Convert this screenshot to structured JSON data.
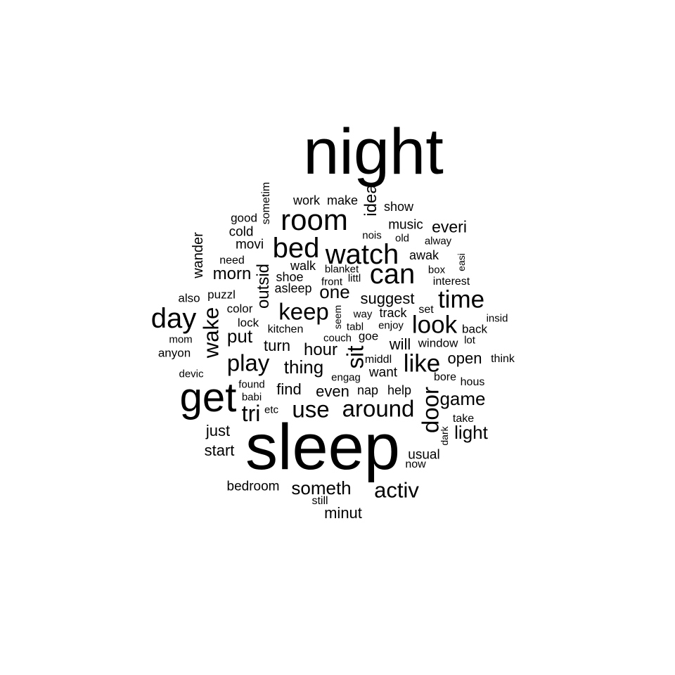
{
  "text_color": "#000000",
  "background": "#ffffff",
  "words": [
    {
      "text": "night",
      "weight": 1.0
    },
    {
      "text": "sleep",
      "weight": 1.0
    },
    {
      "text": "get",
      "weight": 0.7
    },
    {
      "text": "room",
      "weight": 0.55
    },
    {
      "text": "watch",
      "weight": 0.55
    },
    {
      "text": "can",
      "weight": 0.55
    },
    {
      "text": "bed",
      "weight": 0.55
    },
    {
      "text": "day",
      "weight": 0.55
    },
    {
      "text": "time",
      "weight": 0.45
    },
    {
      "text": "look",
      "weight": 0.45
    },
    {
      "text": "like",
      "weight": 0.45
    },
    {
      "text": "keep",
      "weight": 0.45
    },
    {
      "text": "play",
      "weight": 0.45
    },
    {
      "text": "around",
      "weight": 0.45
    },
    {
      "text": "use",
      "weight": 0.45
    },
    {
      "text": "activ",
      "weight": 0.45
    },
    {
      "text": "wake",
      "weight": 0.45
    },
    {
      "text": "sit",
      "weight": 0.45
    },
    {
      "text": "door",
      "weight": 0.45
    },
    {
      "text": "tri",
      "weight": 0.4
    },
    {
      "text": "someth",
      "weight": 0.35
    },
    {
      "text": "game",
      "weight": 0.35
    },
    {
      "text": "light",
      "weight": 0.35
    },
    {
      "text": "put",
      "weight": 0.35
    },
    {
      "text": "thing",
      "weight": 0.35
    },
    {
      "text": "one",
      "weight": 0.35
    },
    {
      "text": "morn",
      "weight": 0.35
    },
    {
      "text": "hour",
      "weight": 0.35
    },
    {
      "text": "outsid",
      "weight": 0.3
    },
    {
      "text": "idea",
      "weight": 0.3
    },
    {
      "text": "everi",
      "weight": 0.3
    },
    {
      "text": "turn",
      "weight": 0.3
    },
    {
      "text": "even",
      "weight": 0.3
    },
    {
      "text": "open",
      "weight": 0.3
    },
    {
      "text": "suggest",
      "weight": 0.3
    },
    {
      "text": "just",
      "weight": 0.3
    },
    {
      "text": "start",
      "weight": 0.3
    },
    {
      "text": "minut",
      "weight": 0.3
    },
    {
      "text": "find",
      "weight": 0.3
    },
    {
      "text": "will",
      "weight": 0.3
    },
    {
      "text": "want",
      "weight": 0.28
    },
    {
      "text": "usual",
      "weight": 0.28
    },
    {
      "text": "wander",
      "weight": 0.28
    },
    {
      "text": "music",
      "weight": 0.26
    },
    {
      "text": "bedroom",
      "weight": 0.26
    },
    {
      "text": "movi",
      "weight": 0.26
    },
    {
      "text": "cold",
      "weight": 0.26
    },
    {
      "text": "walk",
      "weight": 0.24
    },
    {
      "text": "awak",
      "weight": 0.24
    },
    {
      "text": "track",
      "weight": 0.24
    },
    {
      "text": "nap",
      "weight": 0.24
    },
    {
      "text": "help",
      "weight": 0.24
    },
    {
      "text": "asleep",
      "weight": 0.24
    },
    {
      "text": "shoe",
      "weight": 0.24
    },
    {
      "text": "show",
      "weight": 0.24
    },
    {
      "text": "work",
      "weight": 0.24
    },
    {
      "text": "make",
      "weight": 0.24
    },
    {
      "text": "good",
      "weight": 0.22
    },
    {
      "text": "back",
      "weight": 0.22
    },
    {
      "text": "window",
      "weight": 0.22
    },
    {
      "text": "lock",
      "weight": 0.22
    },
    {
      "text": "color",
      "weight": 0.22
    },
    {
      "text": "also",
      "weight": 0.22
    },
    {
      "text": "puzzl",
      "weight": 0.22
    },
    {
      "text": "anyon",
      "weight": 0.22
    },
    {
      "text": "goe",
      "weight": 0.22
    },
    {
      "text": "take",
      "weight": 0.2
    },
    {
      "text": "interest",
      "weight": 0.2
    },
    {
      "text": "think",
      "weight": 0.2
    },
    {
      "text": "hous",
      "weight": 0.2
    },
    {
      "text": "bore",
      "weight": 0.2
    },
    {
      "text": "sometim",
      "weight": 0.2
    },
    {
      "text": "need",
      "weight": 0.2
    },
    {
      "text": "middl",
      "weight": 0.2
    },
    {
      "text": "kitchen",
      "weight": 0.2
    },
    {
      "text": "set",
      "weight": 0.2
    },
    {
      "text": "enjoy",
      "weight": 0.2
    },
    {
      "text": "still",
      "weight": 0.2
    },
    {
      "text": "now",
      "weight": 0.2
    },
    {
      "text": "dark",
      "weight": 0.18
    },
    {
      "text": "found",
      "weight": 0.18
    },
    {
      "text": "babi",
      "weight": 0.18
    },
    {
      "text": "etc",
      "weight": 0.18
    },
    {
      "text": "engag",
      "weight": 0.18
    },
    {
      "text": "couch",
      "weight": 0.18
    },
    {
      "text": "tabl",
      "weight": 0.18
    },
    {
      "text": "way",
      "weight": 0.18
    },
    {
      "text": "seem",
      "weight": 0.18
    },
    {
      "text": "front",
      "weight": 0.18
    },
    {
      "text": "littl",
      "weight": 0.18
    },
    {
      "text": "blanket",
      "weight": 0.18
    },
    {
      "text": "box",
      "weight": 0.18
    },
    {
      "text": "easi",
      "weight": 0.18
    },
    {
      "text": "alway",
      "weight": 0.18
    },
    {
      "text": "old",
      "weight": 0.18
    },
    {
      "text": "nois",
      "weight": 0.18
    },
    {
      "text": "insid",
      "weight": 0.18
    },
    {
      "text": "lot",
      "weight": 0.18
    },
    {
      "text": "mom",
      "weight": 0.18
    },
    {
      "text": "devic",
      "weight": 0.18
    }
  ]
}
